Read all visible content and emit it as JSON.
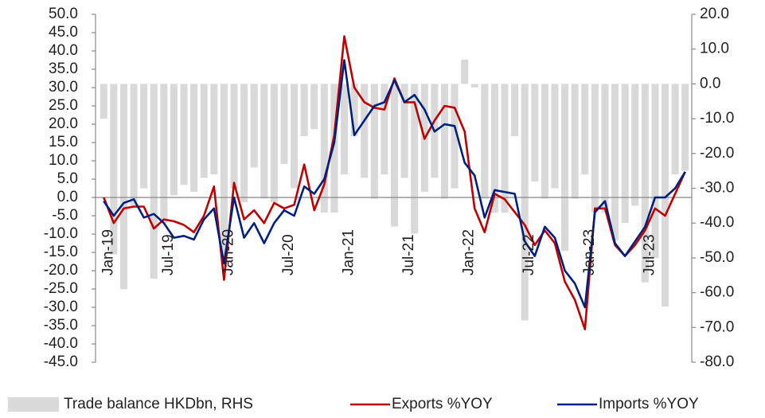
{
  "chart_data": {
    "type": "bar-line",
    "categories": [
      "Jan-19",
      null,
      null,
      null,
      null,
      null,
      "Jul-19",
      null,
      null,
      null,
      null,
      null,
      "Jan-20",
      null,
      null,
      null,
      null,
      null,
      "Jul-20",
      null,
      null,
      null,
      null,
      null,
      "Jan-21",
      null,
      null,
      null,
      null,
      null,
      "Jul-21",
      null,
      null,
      null,
      null,
      null,
      "Jan-22",
      null,
      null,
      null,
      null,
      null,
      "Jul-22",
      null,
      null,
      null,
      null,
      null,
      "Jan-23",
      null,
      null,
      null,
      null,
      null,
      "Jul-23",
      null,
      null,
      null,
      null
    ],
    "series": [
      {
        "name": "Trade balance HKDbn, RHS",
        "color": "#d9d9d9",
        "axis": "y2",
        "kind": "bar",
        "values": [
          -10,
          -49,
          -59,
          -35,
          -30,
          -56,
          -40,
          -32,
          -29,
          -31,
          -27,
          -26,
          -50,
          -30,
          -34,
          -24,
          -33,
          -34,
          -23,
          -30,
          -15,
          -13,
          -37,
          -37,
          -26,
          -15,
          -27,
          -33,
          -26,
          -41,
          -27,
          -43,
          -31,
          -27,
          -33,
          -30,
          7,
          -1,
          -33,
          -37,
          -37,
          -15,
          -68,
          -28,
          -33,
          -30,
          -48,
          -33,
          -26,
          -37,
          -37,
          -45,
          -40,
          -35,
          -57,
          -50,
          -64,
          -26,
          -25
        ]
      },
      {
        "name": "Exports %YOY",
        "color": "#c00000",
        "kind": "line",
        "values": [
          0,
          -7,
          -3,
          -2.5,
          -2.5,
          -8.5,
          -6,
          -6.5,
          -7.5,
          -9.5,
          -5,
          3,
          -22.5,
          4,
          -6,
          -3.5,
          -7,
          -1.5,
          -3,
          -2,
          9,
          -3.5,
          3.5,
          17,
          44,
          30,
          26,
          24.5,
          24,
          32.5,
          26,
          26,
          16,
          21,
          25,
          24.5,
          18,
          -3,
          -9.5,
          1,
          -0.5,
          -4,
          -7.5,
          -13,
          -9,
          -12.5,
          -23,
          -28,
          -36,
          -3,
          -3,
          -13,
          -16,
          -13,
          -9,
          -3,
          -5,
          1,
          7
        ]
      },
      {
        "name": "Imports %YOY",
        "color": "#002080",
        "kind": "line",
        "values": [
          -1,
          -5,
          -1.5,
          -0.5,
          -5.5,
          -4.5,
          -7,
          -11,
          -10.5,
          -11.5,
          -6,
          -3,
          -18,
          0,
          -11,
          -7,
          -12.5,
          -7,
          -3.5,
          -5,
          3,
          1,
          5,
          15,
          37.5,
          17,
          21,
          25,
          26,
          32,
          26,
          28,
          24,
          18,
          20,
          19.5,
          9.5,
          6,
          -5.5,
          2,
          1.5,
          1,
          -12,
          -16,
          -8,
          -11,
          -20,
          -23.5,
          -30,
          -4,
          -1,
          -12.5,
          -16,
          -12,
          -8,
          0,
          0,
          2.5,
          7
        ]
      }
    ],
    "ylim": [
      -45,
      50
    ],
    "yticks": [
      {
        "value": -45,
        "label": "-45.0"
      },
      {
        "value": -40,
        "label": "-40.0"
      },
      {
        "value": -35,
        "label": "-35.0"
      },
      {
        "value": -30,
        "label": "-30.0"
      },
      {
        "value": -25,
        "label": "-25.0"
      },
      {
        "value": -20,
        "label": "-20.0"
      },
      {
        "value": -15,
        "label": "-15.0"
      },
      {
        "value": -10,
        "label": "-10.0"
      },
      {
        "value": -5,
        "label": "-5.0"
      },
      {
        "value": 0,
        "label": "0.0"
      },
      {
        "value": 5,
        "label": "5.0"
      },
      {
        "value": 10,
        "label": "10.0"
      },
      {
        "value": 15,
        "label": "15.0"
      },
      {
        "value": 20,
        "label": "20.0"
      },
      {
        "value": 25,
        "label": "25.0"
      },
      {
        "value": 30,
        "label": "30.0"
      },
      {
        "value": 35,
        "label": "35.0"
      },
      {
        "value": 40,
        "label": "40.0"
      },
      {
        "value": 45,
        "label": "45.0"
      },
      {
        "value": 50,
        "label": "50.0"
      }
    ],
    "y2lim": [
      -80,
      20
    ],
    "y2ticks": [
      {
        "value": -80,
        "label": "-80.0"
      },
      {
        "value": -70,
        "label": "-70.0"
      },
      {
        "value": -60,
        "label": "-60.0"
      },
      {
        "value": -50,
        "label": "-50.0"
      },
      {
        "value": -40,
        "label": "-40.0"
      },
      {
        "value": -30,
        "label": "-30.0"
      },
      {
        "value": -20,
        "label": "-20.0"
      },
      {
        "value": -10,
        "label": "-10.0"
      },
      {
        "value": 0,
        "label": "0.0"
      },
      {
        "value": 10,
        "label": "10.0"
      },
      {
        "value": 20,
        "label": "20.0"
      }
    ],
    "legend": "bottom"
  }
}
